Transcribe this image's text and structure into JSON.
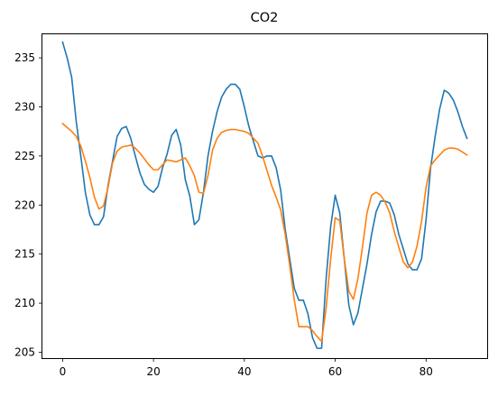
{
  "chart_data": {
    "type": "line",
    "title": "CO2",
    "xlabel": "",
    "ylabel": "",
    "xlim": [
      -4.45,
      93.45
    ],
    "ylim": [
      204.4,
      237.4
    ],
    "xticks": [
      0,
      20,
      40,
      60,
      80
    ],
    "yticks": [
      205,
      210,
      215,
      220,
      225,
      230,
      235
    ],
    "grid": false,
    "legend": "none",
    "x": [
      0,
      1,
      2,
      3,
      4,
      5,
      6,
      7,
      8,
      9,
      10,
      11,
      12,
      13,
      14,
      15,
      16,
      17,
      18,
      19,
      20,
      21,
      22,
      23,
      24,
      25,
      26,
      27,
      28,
      29,
      30,
      31,
      32,
      33,
      34,
      35,
      36,
      37,
      38,
      39,
      40,
      41,
      42,
      43,
      44,
      45,
      46,
      47,
      48,
      49,
      50,
      51,
      52,
      53,
      54,
      55,
      56,
      57,
      58,
      59,
      60,
      61,
      62,
      63,
      64,
      65,
      66,
      67,
      68,
      69,
      70,
      71,
      72,
      73,
      74,
      75,
      76,
      77,
      78,
      79,
      80,
      81,
      82,
      83,
      84,
      85,
      86,
      87,
      88,
      89
    ],
    "series": [
      {
        "color": "#1f77b4",
        "values": [
          236.6,
          235.0,
          233.0,
          228.5,
          225.0,
          221.3,
          219.0,
          218.0,
          218.0,
          218.8,
          222.0,
          224.5,
          227.0,
          227.8,
          228.0,
          226.8,
          225.0,
          223.3,
          222.1,
          221.6,
          221.3,
          221.9,
          223.8,
          225.2,
          227.1,
          227.7,
          226.1,
          222.6,
          220.9,
          218.0,
          218.5,
          221.3,
          225.0,
          227.5,
          229.5,
          231.0,
          231.8,
          232.3,
          232.3,
          231.8,
          230.0,
          228.0,
          226.5,
          225.0,
          224.8,
          225.0,
          225.0,
          223.8,
          221.5,
          217.5,
          214.5,
          211.5,
          210.3,
          210.3,
          208.9,
          206.5,
          205.4,
          205.4,
          212.5,
          217.8,
          221.0,
          219.2,
          214.5,
          209.8,
          207.8,
          209.0,
          211.5,
          214.0,
          217.0,
          219.3,
          220.4,
          220.4,
          220.2,
          219.0,
          217.0,
          215.5,
          214.0,
          213.4,
          213.4,
          214.5,
          218.5,
          223.8,
          227.0,
          229.8,
          231.7,
          231.4,
          230.7,
          229.5,
          228.0,
          226.8
        ]
      },
      {
        "color": "#ff7f0e",
        "values": [
          228.3,
          227.9,
          227.5,
          227.0,
          226.0,
          224.5,
          222.8,
          220.8,
          219.6,
          219.9,
          221.8,
          224.3,
          225.5,
          225.9,
          226.0,
          226.1,
          225.8,
          225.3,
          224.7,
          224.1,
          223.6,
          223.6,
          224.1,
          224.6,
          224.5,
          224.4,
          224.6,
          224.8,
          224.0,
          223.0,
          221.3,
          221.2,
          223.0,
          225.6,
          226.8,
          227.4,
          227.6,
          227.7,
          227.7,
          227.6,
          227.5,
          227.3,
          226.8,
          226.3,
          225.0,
          223.5,
          222.0,
          220.8,
          219.5,
          217.0,
          213.8,
          210.3,
          207.6,
          207.6,
          207.6,
          207.2,
          206.6,
          206.1,
          209.5,
          214.5,
          218.7,
          218.4,
          214.5,
          211.2,
          210.4,
          212.5,
          215.7,
          219.2,
          221.0,
          221.3,
          221.0,
          220.3,
          219.2,
          217.3,
          215.7,
          214.2,
          213.6,
          214.2,
          215.8,
          218.3,
          221.8,
          224.0,
          224.6,
          225.1,
          225.6,
          225.8,
          225.8,
          225.7,
          225.4,
          225.1
        ]
      }
    ]
  }
}
